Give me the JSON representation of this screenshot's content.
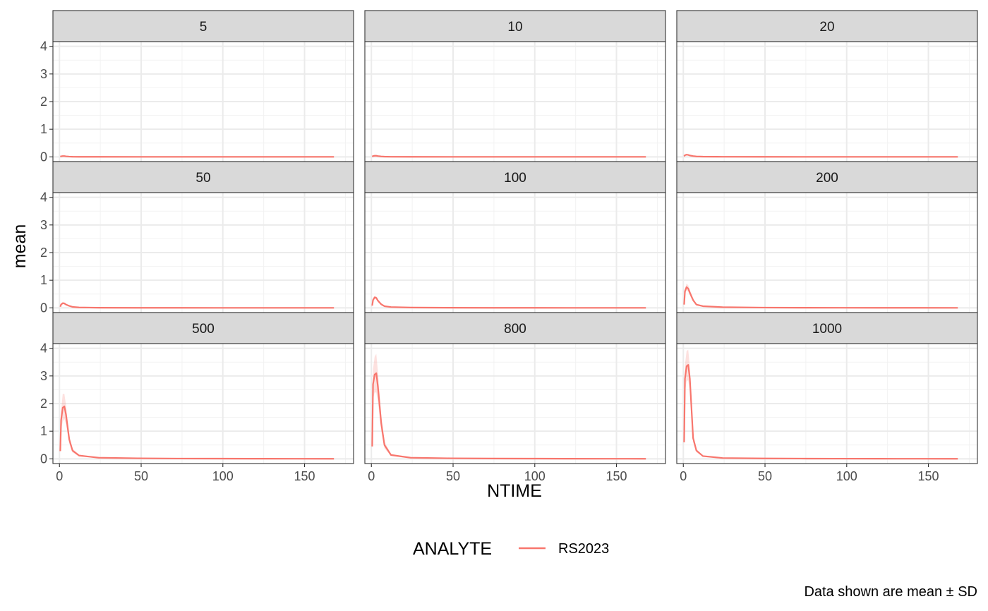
{
  "chart_data": {
    "type": "line",
    "facet_panels": [
      "5",
      "10",
      "20",
      "50",
      "100",
      "200",
      "500",
      "800",
      "1000"
    ],
    "xlabel": "NTIME",
    "ylabel": "mean",
    "xlim": [
      -4,
      180
    ],
    "ylim": [
      -0.17,
      4.17
    ],
    "x_ticks": [
      0,
      50,
      100,
      150
    ],
    "y_ticks": [
      0,
      1,
      2,
      3,
      4
    ],
    "grid": true,
    "legend": {
      "title": "ANALYTE",
      "position": "bottom",
      "entries": [
        "RS2023"
      ]
    },
    "caption": "Data shown are mean ± SD",
    "series_color": "#F8766D",
    "ribbon_color": "#F8766D",
    "x": [
      0.5,
      1,
      2,
      3,
      4,
      6,
      8,
      12,
      24,
      48,
      72,
      96,
      120,
      144,
      168
    ],
    "series": [
      {
        "panel": "5",
        "name": "RS2023",
        "values": [
          0.01,
          0.02,
          0.03,
          0.03,
          0.02,
          0.01,
          0.005,
          0.003,
          0.002,
          0.001,
          0.001,
          0.001,
          0.001,
          0.001,
          0.001
        ],
        "sd": [
          0.0,
          0.005,
          0.01,
          0.01,
          0.005,
          0.003,
          0.002,
          0.001,
          0.0,
          0.0,
          0.0,
          0.0,
          0.0,
          0.0,
          0.0
        ]
      },
      {
        "panel": "10",
        "name": "RS2023",
        "values": [
          0.01,
          0.03,
          0.04,
          0.04,
          0.03,
          0.015,
          0.008,
          0.004,
          0.002,
          0.001,
          0.001,
          0.001,
          0.001,
          0.001,
          0.001
        ],
        "sd": [
          0.0,
          0.008,
          0.01,
          0.01,
          0.008,
          0.004,
          0.002,
          0.001,
          0.0,
          0.0,
          0.0,
          0.0,
          0.0,
          0.0,
          0.0
        ]
      },
      {
        "panel": "20",
        "name": "RS2023",
        "values": [
          0.02,
          0.06,
          0.08,
          0.07,
          0.05,
          0.03,
          0.015,
          0.008,
          0.004,
          0.002,
          0.001,
          0.001,
          0.001,
          0.001,
          0.001
        ],
        "sd": [
          0.005,
          0.015,
          0.02,
          0.02,
          0.015,
          0.008,
          0.004,
          0.002,
          0.001,
          0.0,
          0.0,
          0.0,
          0.0,
          0.0,
          0.0
        ]
      },
      {
        "panel": "50",
        "name": "RS2023",
        "values": [
          0.04,
          0.12,
          0.17,
          0.16,
          0.12,
          0.07,
          0.035,
          0.015,
          0.006,
          0.003,
          0.002,
          0.001,
          0.001,
          0.001,
          0.001
        ],
        "sd": [
          0.01,
          0.03,
          0.04,
          0.04,
          0.03,
          0.015,
          0.008,
          0.004,
          0.002,
          0.0,
          0.0,
          0.0,
          0.0,
          0.0,
          0.0
        ]
      },
      {
        "panel": "100",
        "name": "RS2023",
        "values": [
          0.08,
          0.28,
          0.38,
          0.36,
          0.26,
          0.13,
          0.06,
          0.03,
          0.012,
          0.005,
          0.003,
          0.002,
          0.001,
          0.001,
          0.001
        ],
        "sd": [
          0.02,
          0.05,
          0.06,
          0.06,
          0.05,
          0.03,
          0.015,
          0.008,
          0.003,
          0.001,
          0.0,
          0.0,
          0.0,
          0.0,
          0.0
        ]
      },
      {
        "panel": "200",
        "name": "RS2023",
        "values": [
          0.12,
          0.6,
          0.75,
          0.7,
          0.55,
          0.28,
          0.12,
          0.06,
          0.025,
          0.01,
          0.006,
          0.004,
          0.002,
          0.002,
          0.001
        ],
        "sd": [
          0.03,
          0.1,
          0.13,
          0.12,
          0.1,
          0.06,
          0.03,
          0.015,
          0.006,
          0.002,
          0.001,
          0.001,
          0.0,
          0.0,
          0.0
        ]
      },
      {
        "panel": "500",
        "name": "RS2023",
        "values": [
          0.28,
          1.4,
          1.85,
          1.9,
          1.6,
          0.7,
          0.3,
          0.12,
          0.04,
          0.02,
          0.01,
          0.008,
          0.005,
          0.004,
          0.003
        ],
        "sd": [
          0.06,
          0.35,
          0.5,
          0.45,
          0.35,
          0.15,
          0.07,
          0.03,
          0.01,
          0.005,
          0.003,
          0.002,
          0.001,
          0.001,
          0.001
        ]
      },
      {
        "panel": "800",
        "name": "RS2023",
        "values": [
          0.45,
          2.7,
          3.05,
          3.1,
          2.6,
          1.3,
          0.5,
          0.14,
          0.04,
          0.02,
          0.012,
          0.009,
          0.006,
          0.004,
          0.003
        ],
        "sd": [
          0.1,
          0.55,
          0.65,
          0.7,
          0.55,
          0.3,
          0.12,
          0.04,
          0.01,
          0.005,
          0.003,
          0.002,
          0.001,
          0.001,
          0.001
        ]
      },
      {
        "panel": "1000",
        "name": "RS2023",
        "values": [
          0.6,
          2.9,
          3.35,
          3.4,
          2.9,
          0.75,
          0.3,
          0.1,
          0.03,
          0.015,
          0.01,
          0.007,
          0.005,
          0.004,
          0.003
        ],
        "sd": [
          0.12,
          0.5,
          0.55,
          0.55,
          0.45,
          0.15,
          0.06,
          0.02,
          0.008,
          0.004,
          0.003,
          0.002,
          0.001,
          0.001,
          0.001
        ]
      }
    ]
  }
}
